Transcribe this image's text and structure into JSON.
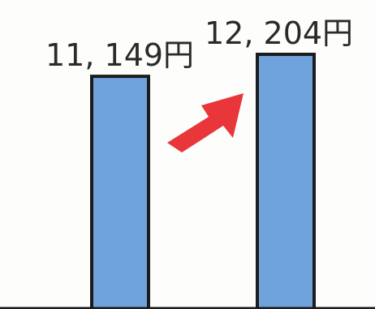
{
  "chart_data": {
    "type": "bar",
    "title": "",
    "xlabel": "",
    "ylabel": "",
    "categories": [
      "",
      ""
    ],
    "values": [
      11149,
      12204
    ],
    "data_labels": [
      "11, 149円",
      "12, 204円"
    ],
    "ylim": [
      0,
      13500
    ],
    "grid": false,
    "legend": "none",
    "annotations": [
      {
        "type": "arrow",
        "direction": "up-right",
        "from_bar": 0,
        "to_bar": 1
      }
    ]
  },
  "colors": {
    "bar_fill": "#6fa3dc",
    "bar_stroke": "#1c1c1c",
    "arrow": "#e8363a",
    "text": "#2a2a2a",
    "background": "#fdfdfb"
  }
}
